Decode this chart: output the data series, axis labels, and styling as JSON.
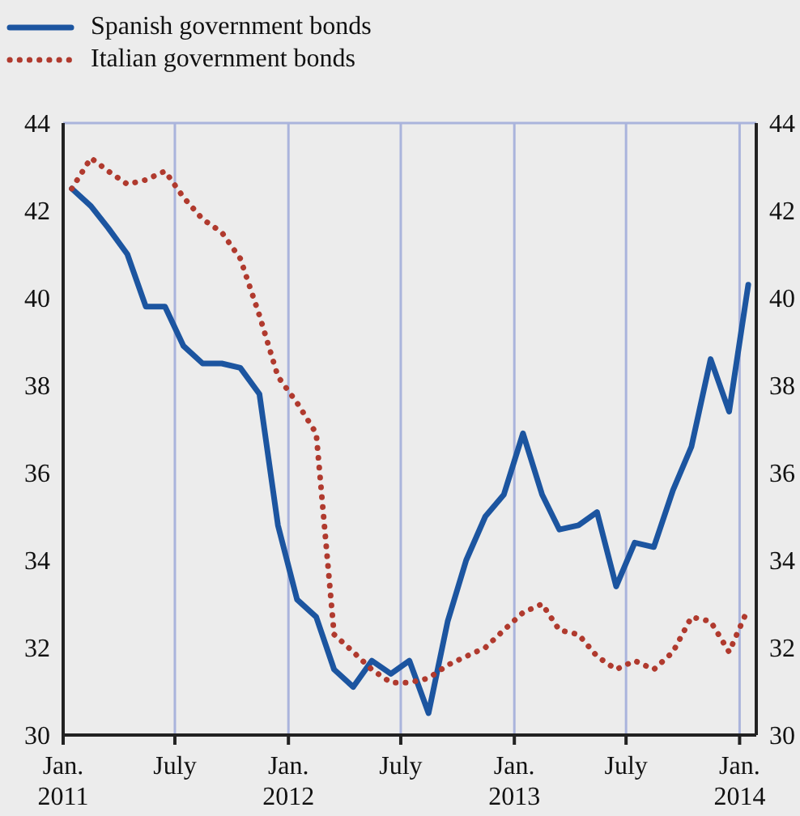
{
  "chart_data": {
    "type": "line",
    "x": [
      "2011-01-15",
      "2011-02-15",
      "2011-03-15",
      "2011-04-15",
      "2011-05-15",
      "2011-06-15",
      "2011-07-15",
      "2011-08-15",
      "2011-09-15",
      "2011-10-15",
      "2011-11-15",
      "2011-12-15",
      "2012-01-15",
      "2012-02-15",
      "2012-03-15",
      "2012-04-15",
      "2012-05-15",
      "2012-06-15",
      "2012-07-15",
      "2012-08-15",
      "2012-09-15",
      "2012-10-15",
      "2012-11-15",
      "2012-12-15",
      "2013-01-15",
      "2013-02-15",
      "2013-03-15",
      "2013-04-15",
      "2013-05-15",
      "2013-06-15",
      "2013-07-15",
      "2013-08-15",
      "2013-09-15",
      "2013-10-15",
      "2013-11-15",
      "2013-12-15",
      "2014-01-15"
    ],
    "series": [
      {
        "name": "Spanish government bonds",
        "color": "#1c55a0",
        "line_style": "solid",
        "values": [
          42.5,
          42.1,
          41.6,
          41.0,
          39.8,
          39.8,
          38.9,
          38.5,
          38.5,
          38.4,
          37.8,
          34.8,
          33.1,
          32.7,
          31.5,
          31.1,
          31.7,
          31.4,
          31.7,
          30.5,
          32.6,
          34.0,
          35.0,
          35.5,
          36.9,
          35.5,
          34.7,
          34.8,
          35.1,
          33.4,
          34.4,
          34.3,
          35.6,
          36.6,
          38.6,
          37.4,
          40.3
        ]
      },
      {
        "name": "Italian government bonds",
        "color": "#b03a2e",
        "line_style": "dotted",
        "values": [
          42.5,
          43.2,
          42.9,
          42.6,
          42.7,
          42.9,
          42.3,
          41.8,
          41.5,
          40.9,
          39.6,
          38.2,
          37.6,
          36.9,
          32.3,
          31.9,
          31.5,
          31.2,
          31.2,
          31.3,
          31.6,
          31.8,
          32.0,
          32.4,
          32.8,
          33.0,
          32.4,
          32.3,
          31.8,
          31.5,
          31.7,
          31.5,
          31.9,
          32.7,
          32.6,
          31.9,
          32.9
        ]
      }
    ],
    "xlim": [
      "2011-01-01",
      "2014-01-28"
    ],
    "xticks": [
      {
        "value": "2011-01-01",
        "label": "Jan.\n2011"
      },
      {
        "value": "2011-07-01",
        "label": "July"
      },
      {
        "value": "2012-01-01",
        "label": "Jan.\n2012"
      },
      {
        "value": "2012-07-01",
        "label": "July"
      },
      {
        "value": "2013-01-01",
        "label": "Jan.\n2013"
      },
      {
        "value": "2013-07-01",
        "label": "July"
      },
      {
        "value": "2014-01-01",
        "label": "Jan.\n2014"
      }
    ],
    "ylim": [
      30,
      44
    ],
    "yticks": [
      30,
      32,
      34,
      36,
      38,
      40,
      42,
      44
    ],
    "y2lim": [
      30,
      44
    ],
    "y2ticks": [
      30,
      32,
      34,
      36,
      38,
      40,
      42,
      44
    ],
    "grid": true,
    "legend": "top left"
  }
}
